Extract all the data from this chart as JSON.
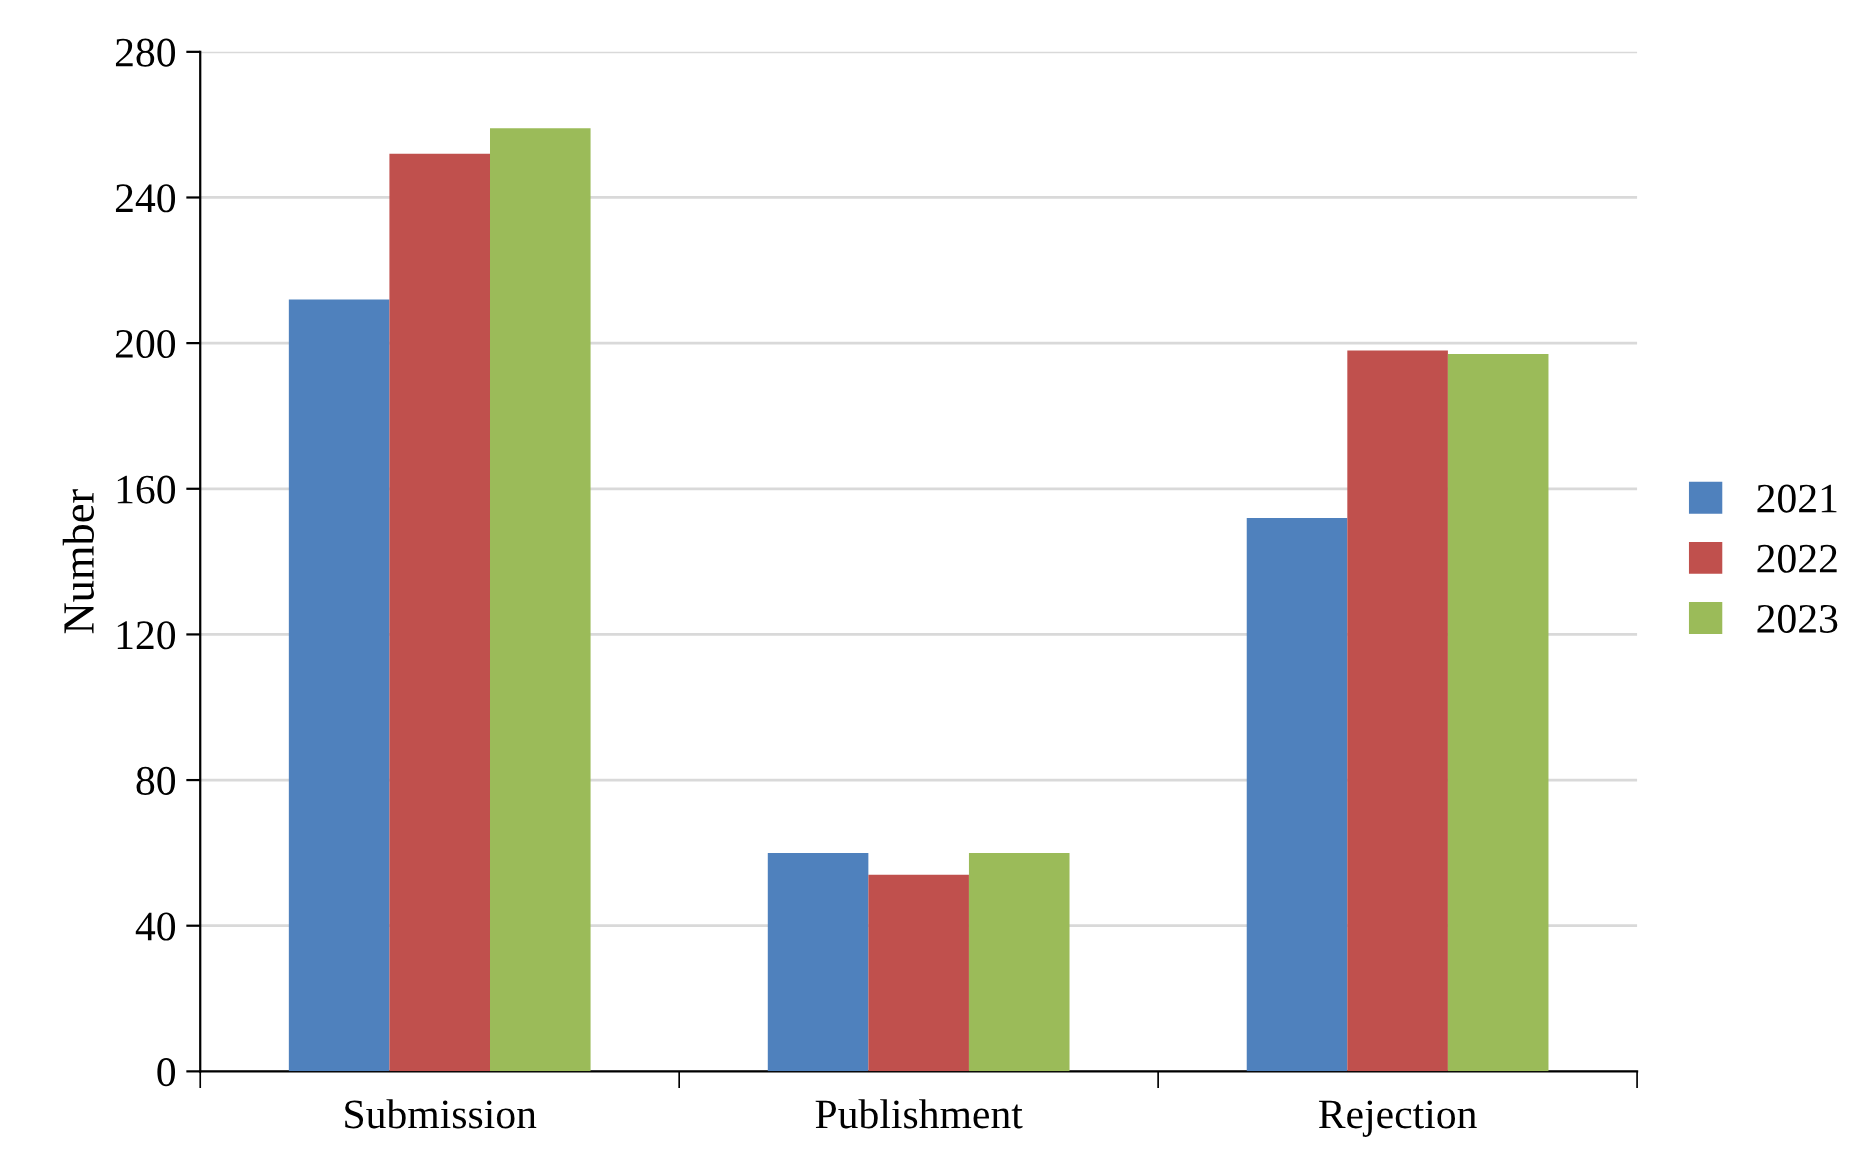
{
  "chart_data": {
    "type": "bar",
    "ylabel": "Number",
    "categories": [
      "Submission",
      "Publishment",
      "Rejection"
    ],
    "series": [
      {
        "name": "2021",
        "color": "#4f81bd",
        "values": [
          212,
          60,
          152
        ]
      },
      {
        "name": "2022",
        "color": "#c0504d",
        "values": [
          252,
          54,
          198
        ]
      },
      {
        "name": "2023",
        "color": "#9bbb59",
        "values": [
          259,
          60,
          197
        ]
      }
    ],
    "ylim": [
      0,
      280
    ],
    "yticks": [
      0,
      40,
      80,
      120,
      160,
      200,
      240,
      280
    ],
    "grid": "y",
    "legend": "right"
  }
}
